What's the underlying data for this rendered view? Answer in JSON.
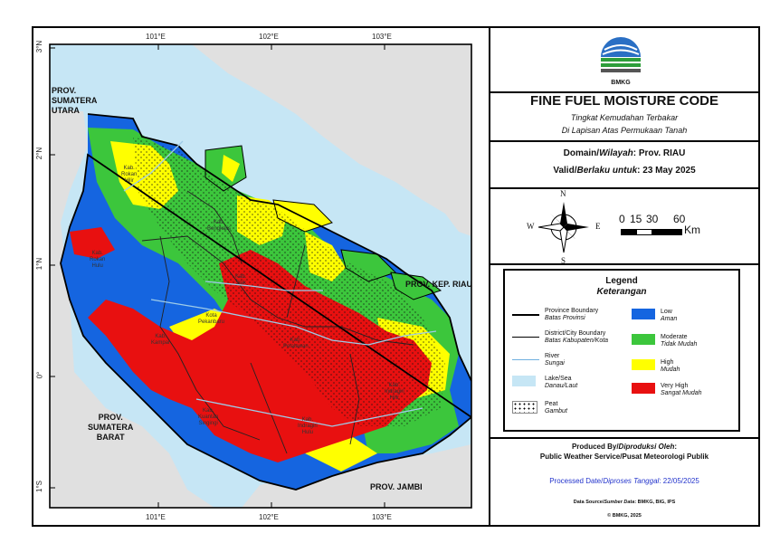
{
  "map": {
    "lon_labels": [
      "101°E",
      "102°E",
      "103°E"
    ],
    "lat_labels": [
      "3°N",
      "2°N",
      "1°N",
      "0°",
      "1°S"
    ],
    "places": {
      "sumut": [
        "PROV.",
        "SUMATERA",
        "UTARA"
      ],
      "sumbar": [
        "PROV.",
        "SUMATERA",
        "BARAT"
      ],
      "jambi": "PROV. JAMBI",
      "kepri": "PROV. KEP. RIAU"
    },
    "regency_labels": [
      [
        "Kab.",
        "Rokan",
        "Hilir"
      ],
      [
        "Kab.",
        "Bengkalis"
      ],
      [
        "Kab.",
        "Rokan",
        "Hulu"
      ],
      [
        "Kab.",
        "Siak"
      ],
      [
        "Kab.",
        "Kampar"
      ],
      [
        "Kota",
        "Pekanbaru"
      ],
      [
        "Kab.",
        "Pelalawan"
      ],
      [
        "Kab.",
        "Kuantan",
        "Singingi"
      ],
      [
        "Kab.",
        "Indragiri",
        "Hulu"
      ],
      [
        "Kab.",
        "Indragiri",
        "Hilir"
      ]
    ]
  },
  "header": {
    "logo_text": "BMKG",
    "title": "FINE FUEL MOISTURE CODE",
    "subtitle_line1": "Tingkat Kemudahan Terbakar",
    "subtitle_line2": "Di Lapisan Atas Permukaan Tanah"
  },
  "domain": {
    "label_en": "Domain/",
    "label_id": "Wilayah",
    "value": ": Prov. RIAU"
  },
  "valid": {
    "label_en": "Valid/",
    "label_id": "Berlaku untuk",
    "value": ": 23 May 2025"
  },
  "compass": {
    "n": "N",
    "s": "S",
    "e": "E",
    "w": "W"
  },
  "scalebar": {
    "ticks": [
      "0",
      "15",
      "30",
      "60"
    ],
    "unit": "Km"
  },
  "legend": {
    "title": "Legend",
    "subtitle": "Keterangan",
    "lines": [
      {
        "en": "Province Boundary",
        "id": "Batas Provinsi"
      },
      {
        "en": "District/City Boundary",
        "id": "Batas Kabupaten/Kota"
      },
      {
        "en": "River",
        "id": "Sungai"
      },
      {
        "en": "Lake/Sea",
        "id": "Danau/Laut"
      },
      {
        "en": "Peat",
        "id": "Gambut"
      }
    ],
    "classes": [
      {
        "en": "Low",
        "id": "Aman",
        "color": "#1565e0"
      },
      {
        "en": "Moderate",
        "id": "Tidak Mudah",
        "color": "#3cc63c"
      },
      {
        "en": "High",
        "id": "Mudah",
        "color": "#ffff00"
      },
      {
        "en": "Very High",
        "id": "Sangat Mudah",
        "color": "#e81010"
      }
    ]
  },
  "producer": {
    "label": "Produced By/",
    "label_id": "Diproduksi Oleh",
    "line2": "Public Weather Service/",
    "line2_id": "Pusat Meteorologi Publik"
  },
  "processed": {
    "label": "Processed Date/",
    "label_id": "Diproses Tanggal",
    "value": ": 22/05/2025"
  },
  "source": {
    "label": "Data Source/",
    "label_id": "Sumber Data",
    "value": ": BMKG, BIG, IPS"
  },
  "copyright": "© BMKG, 2025",
  "colors": {
    "sea": "#c6e6f5",
    "land": "#e0e0e0",
    "low": "#1565e0",
    "moderate": "#3cc63c",
    "high": "#ffff00",
    "very_high": "#e81010",
    "date_blue": "#2233cc"
  }
}
